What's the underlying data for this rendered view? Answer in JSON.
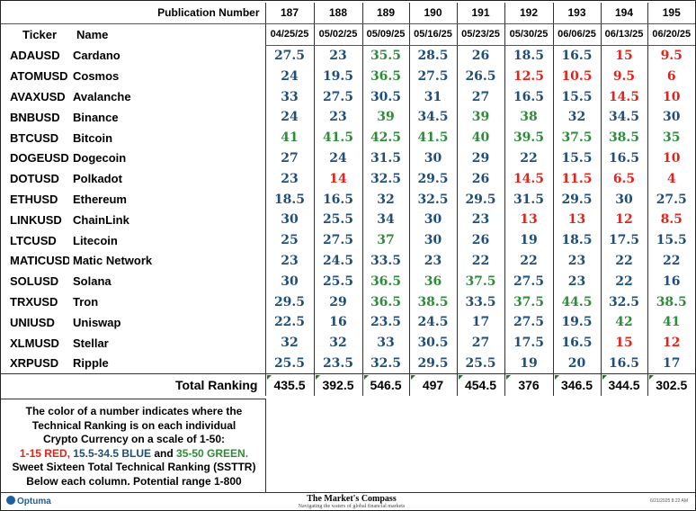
{
  "header": {
    "pubnum_label": "Publication Number",
    "col_ticker": "Ticker",
    "col_name": "Name"
  },
  "publications": [
    {
      "number": "187",
      "date": "04/25/25",
      "total": "435.5"
    },
    {
      "number": "188",
      "date": "05/02/25",
      "total": "392.5"
    },
    {
      "number": "189",
      "date": "05/09/25",
      "total": "546.5"
    },
    {
      "number": "190",
      "date": "05/16/25",
      "total": "497"
    },
    {
      "number": "191",
      "date": "05/23/25",
      "total": "454.5"
    },
    {
      "number": "192",
      "date": "05/30/25",
      "total": "376"
    },
    {
      "number": "193",
      "date": "06/06/25",
      "total": "346.5"
    },
    {
      "number": "194",
      "date": "06/13/25",
      "total": "344.5"
    },
    {
      "number": "195",
      "date": "06/20/25",
      "total": "302.5"
    }
  ],
  "rows": [
    {
      "ticker": "ADAUSD",
      "name": "Cardano",
      "values": [
        "27.5",
        "23",
        "35.5",
        "28.5",
        "26",
        "18.5",
        "16.5",
        "15",
        "9.5"
      ]
    },
    {
      "ticker": "ATOMUSD",
      "name": "Cosmos",
      "values": [
        "24",
        "19.5",
        "36.5",
        "27.5",
        "26.5",
        "12.5",
        "10.5",
        "9.5",
        "6"
      ]
    },
    {
      "ticker": "AVAXUSD",
      "name": "Avalanche",
      "values": [
        "33",
        "27.5",
        "30.5",
        "31",
        "27",
        "16.5",
        "15.5",
        "14.5",
        "10"
      ]
    },
    {
      "ticker": "BNBUSD",
      "name": "Binance",
      "values": [
        "24",
        "23",
        "39",
        "34.5",
        "39",
        "38",
        "32",
        "34.5",
        "30"
      ]
    },
    {
      "ticker": "BTCUSD",
      "name": "Bitcoin",
      "values": [
        "41",
        "41.5",
        "42.5",
        "41.5",
        "40",
        "39.5",
        "37.5",
        "38.5",
        "35"
      ]
    },
    {
      "ticker": "DOGEUSD",
      "name": "Dogecoin",
      "values": [
        "27",
        "24",
        "31.5",
        "30",
        "29",
        "22",
        "15.5",
        "16.5",
        "10"
      ]
    },
    {
      "ticker": "DOTUSD",
      "name": "Polkadot",
      "values": [
        "23",
        "14",
        "32.5",
        "29.5",
        "26",
        "14.5",
        "11.5",
        "6.5",
        "4"
      ]
    },
    {
      "ticker": "ETHUSD",
      "name": "Ethereum",
      "values": [
        "18.5",
        "16.5",
        "32",
        "32.5",
        "29.5",
        "31.5",
        "29.5",
        "30",
        "27.5"
      ]
    },
    {
      "ticker": "LINKUSD",
      "name": "ChainLink",
      "values": [
        "30",
        "25.5",
        "34",
        "30",
        "23",
        "13",
        "13",
        "12",
        "8.5"
      ]
    },
    {
      "ticker": "LTCUSD",
      "name": "Litecoin",
      "values": [
        "25",
        "27.5",
        "37",
        "30",
        "26",
        "19",
        "18.5",
        "17.5",
        "15.5"
      ]
    },
    {
      "ticker": "MATICUSD",
      "name": "Matic Network",
      "values": [
        "23",
        "24.5",
        "33.5",
        "23",
        "22",
        "22",
        "23",
        "22",
        "22"
      ]
    },
    {
      "ticker": "SOLUSD",
      "name": "Solana",
      "values": [
        "30",
        "25.5",
        "36.5",
        "36",
        "37.5",
        "27.5",
        "23",
        "22",
        "16"
      ]
    },
    {
      "ticker": "TRXUSD",
      "name": "Tron",
      "values": [
        "29.5",
        "29",
        "36.5",
        "38.5",
        "33.5",
        "37.5",
        "44.5",
        "32.5",
        "38.5"
      ]
    },
    {
      "ticker": "UNIUSD",
      "name": "Uniswap",
      "values": [
        "22.5",
        "16",
        "23.5",
        "24.5",
        "17",
        "27.5",
        "19.5",
        "42",
        "41"
      ]
    },
    {
      "ticker": "XLMUSD",
      "name": "Stellar",
      "values": [
        "32",
        "32",
        "33",
        "30.5",
        "27",
        "17.5",
        "16.5",
        "15",
        "12"
      ]
    },
    {
      "ticker": "XRPUSD",
      "name": "Ripple",
      "values": [
        "25.5",
        "23.5",
        "32.5",
        "29.5",
        "25.5",
        "19",
        "20",
        "16.5",
        "17"
      ]
    }
  ],
  "total_label": "Total Ranking",
  "legend": {
    "line1": "The color of a number indicates where the",
    "line2": "Technical Ranking is on each individual",
    "line3": "Crypto Currency on a scale of 1-50:",
    "red": "1-15 RED,",
    "blue": " 15.5-34.5 BLUE",
    "and": " and ",
    "green": "35-50 GREEN.",
    "line5": "Sweet Sixteen Total Technical Ranking (SSTTR)",
    "line6": "Below each column.   Potential range 1-800"
  },
  "colors": {
    "red": "#e2231a",
    "blue": "#1f4e79",
    "green": "#2e8b3a"
  },
  "footer": {
    "logo": "Optuma",
    "brand_title": "The Market's Compass",
    "brand_sub": "Navigating the waters of global financial markets",
    "stamp": "6/21/2025 8:22 AM"
  }
}
